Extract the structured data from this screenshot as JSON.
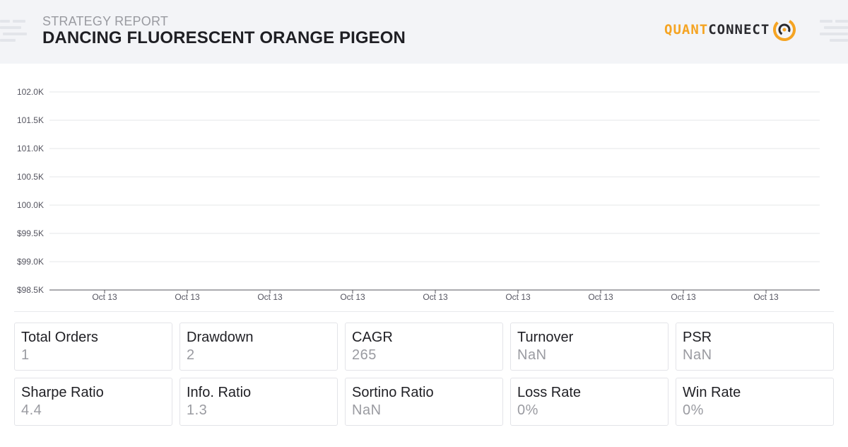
{
  "header": {
    "subtitle": "STRATEGY REPORT",
    "title": "DANCING FLUORESCENT ORANGE PIGEON",
    "logo_left": "QUANT",
    "logo_right": "CONNECT"
  },
  "colors": {
    "accent": "#f5a423",
    "header_bg": "#f3f4f7",
    "gridline": "#e6e7ea",
    "axis": "#55565c",
    "label": "#555560",
    "value_muted": "#9a9ba1"
  },
  "chart_data": {
    "type": "line",
    "title": "",
    "xlabel": "",
    "ylabel": "",
    "y_ticks": [
      "102.0K",
      "101.5K",
      "101.0K",
      "100.5K",
      "100.0K",
      "$99.5K",
      "$99.0K",
      "$98.5K"
    ],
    "ylim": [
      98500,
      102000
    ],
    "x_ticks": [
      "Oct 13",
      "Oct 13",
      "Oct 13",
      "Oct 13",
      "Oct 13",
      "Oct 13",
      "Oct 13",
      "Oct 13",
      "Oct 13"
    ],
    "grid": true,
    "series": []
  },
  "stats": [
    {
      "label": "Total Orders",
      "value": "1"
    },
    {
      "label": "Drawdown",
      "value": "2"
    },
    {
      "label": "CAGR",
      "value": "265"
    },
    {
      "label": "Turnover",
      "value": "NaN"
    },
    {
      "label": "PSR",
      "value": "NaN"
    },
    {
      "label": "Sharpe Ratio",
      "value": "4.4"
    },
    {
      "label": "Info. Ratio",
      "value": "1.3"
    },
    {
      "label": "Sortino Ratio",
      "value": "NaN"
    },
    {
      "label": "Loss Rate",
      "value": "0%"
    },
    {
      "label": "Win Rate",
      "value": "0%"
    }
  ]
}
